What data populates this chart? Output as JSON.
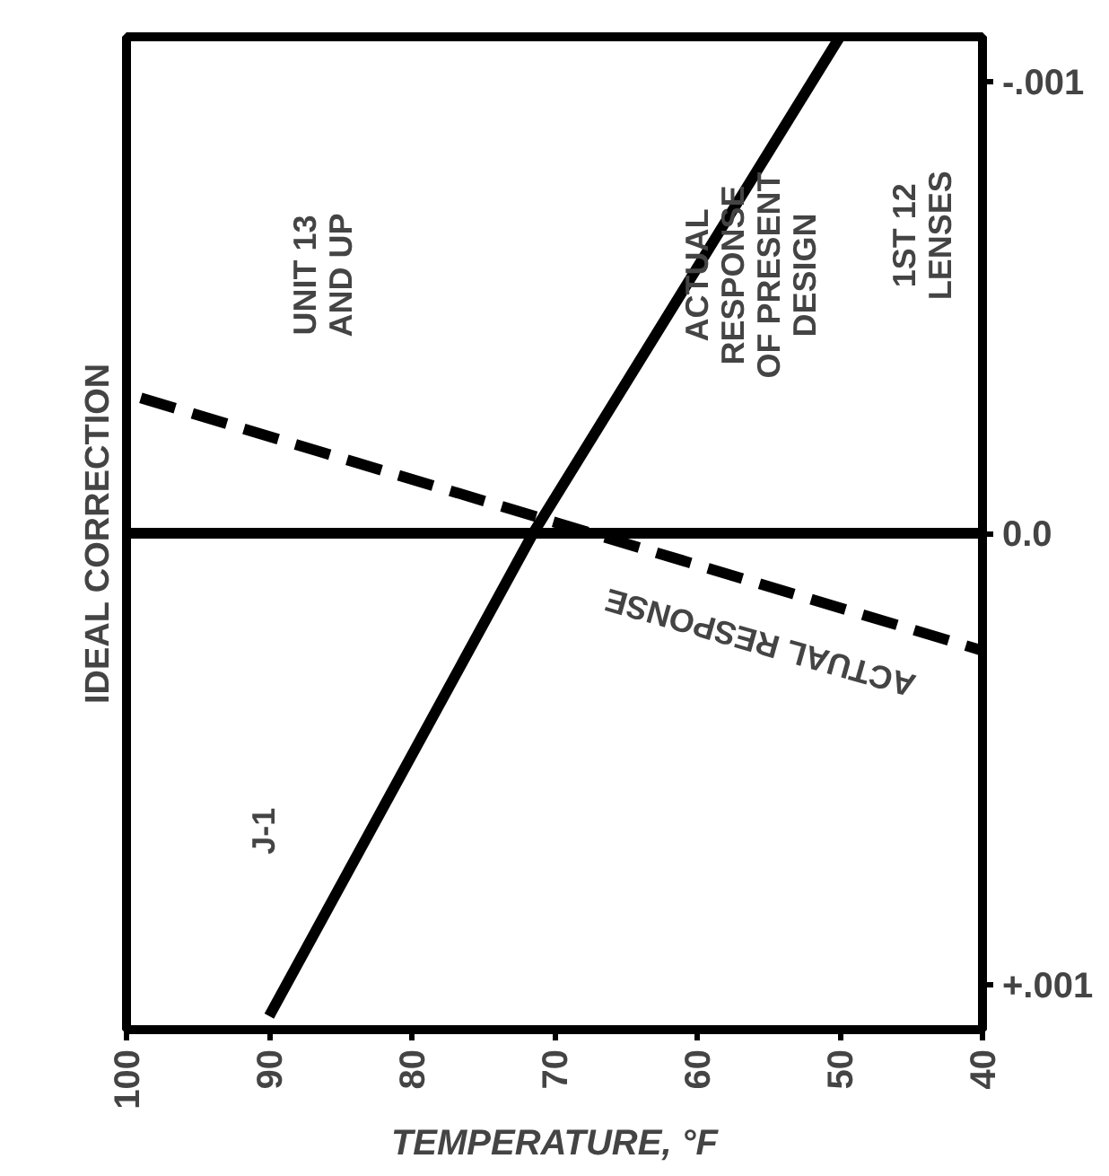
{
  "chart_data": {
    "type": "line",
    "xlabel": "TEMPERATURE, °F",
    "xlim": [
      100,
      40
    ],
    "xticks": [
      100,
      90,
      80,
      70,
      60,
      50,
      40
    ],
    "ylim": [
      0.0011,
      -0.0011
    ],
    "yticks": [
      {
        "value": 0.001,
        "label": "+.001"
      },
      {
        "value": 0,
        "label": "0.0"
      },
      {
        "value": -0.001,
        "label": "-.001"
      }
    ],
    "series": [
      {
        "color": "#000000",
        "line_style": "solid",
        "x": [
          100,
          40
        ],
        "values": [
          0,
          0
        ]
      },
      {
        "color": "#000000",
        "line_style": "solid",
        "x": [
          90,
          71.5,
          50
        ],
        "values": [
          0.00107,
          0,
          -0.0011
        ]
      },
      {
        "color": "#000000",
        "line_style": "dashed",
        "x": [
          99,
          40
        ],
        "values": [
          -0.0003,
          0.00026
        ]
      }
    ],
    "annotations": [
      "IDEAL CORRECTION",
      "UNIT 13 AND UP",
      "ACTUAL RESPONSE OF PRESENT DESIGN",
      "1ST 12 LENSES",
      "J-1",
      "ACTUAL RESPONSE"
    ],
    "grid": false
  }
}
